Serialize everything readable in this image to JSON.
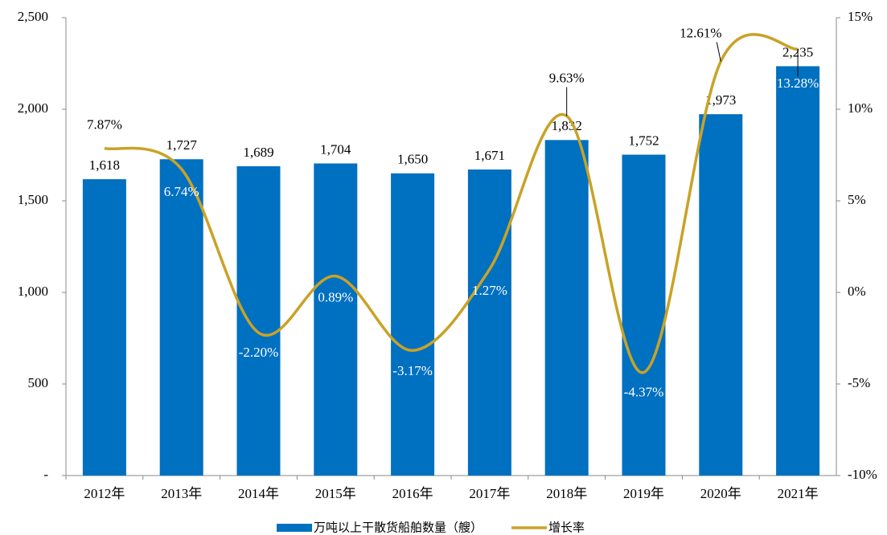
{
  "chart_data": {
    "type": "bar",
    "categories": [
      "2012年",
      "2013年",
      "2014年",
      "2015年",
      "2016年",
      "2017年",
      "2018年",
      "2019年",
      "2020年",
      "2021年"
    ],
    "series": [
      {
        "name": "万吨以上干散货船舶数量（艘）",
        "type": "bar",
        "color": "#0070c0",
        "values": [
          1618,
          1727,
          1689,
          1704,
          1650,
          1671,
          1832,
          1752,
          1973,
          2235
        ],
        "value_labels": [
          "1,618",
          "1,727",
          "1,689",
          "1,704",
          "1,650",
          "1,671",
          "1,832",
          "1,752",
          "1,973",
          "2,235"
        ]
      },
      {
        "name": "增长率",
        "type": "line",
        "axis": "y2",
        "color": "#c9a227",
        "values": [
          7.87,
          6.74,
          -2.2,
          0.89,
          -3.17,
          1.27,
          9.63,
          -4.37,
          12.61,
          13.28
        ],
        "value_labels": [
          "7.87%",
          "6.74%",
          "-2.20%",
          "0.89%",
          "-3.17%",
          "1.27%",
          "9.63%",
          "-4.37%",
          "12.61%",
          "13.28%"
        ]
      }
    ],
    "ylim": [
      0,
      2500
    ],
    "yticks": [
      {
        "value": 0,
        "label": "-"
      },
      {
        "value": 500,
        "label": "500"
      },
      {
        "value": 1000,
        "label": "1,000"
      },
      {
        "value": 1500,
        "label": "1,500"
      },
      {
        "value": 2000,
        "label": "2,000"
      },
      {
        "value": 2500,
        "label": "2,500"
      }
    ],
    "y2lim": [
      -10,
      15
    ],
    "y2ticks": [
      {
        "value": -10,
        "label": "-10%"
      },
      {
        "value": -5,
        "label": "-5%"
      },
      {
        "value": 0,
        "label": "0%"
      },
      {
        "value": 5,
        "label": "5%"
      },
      {
        "value": 10,
        "label": "10%"
      },
      {
        "value": 15,
        "label": "15%"
      }
    ],
    "legend": "bottom"
  }
}
